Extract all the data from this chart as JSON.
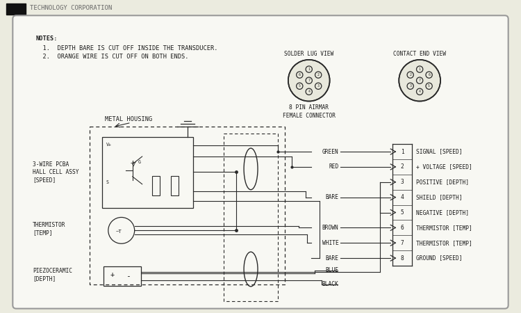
{
  "background_color": "#ebebdf",
  "panel_color": "#f5f5f0",
  "line_color": "#2a2a2a",
  "text_color": "#1a1a1a",
  "title_text": "TECHNOLOGY CORPORATION",
  "notes": [
    "NOTES:",
    "  1.  DEPTH BARE IS CUT OFF INSIDE THE TRANSDUCER.",
    "  2.  ORANGE WIRE IS CUT OFF ON BOTH ENDS."
  ],
  "connector_label1": "SOLDER LUG VIEW",
  "connector_label2": "CONTACT END VIEW",
  "connector_sub": "8 PIN AIRMAR\nFEMALE CONNECTOR",
  "metal_housing_label": "METAL HOUSING",
  "pin_labels": [
    {
      "pin": "1",
      "desc": "SIGNAL [SPEED]"
    },
    {
      "pin": "2",
      "desc": "+ VOLTAGE [SPEED]"
    },
    {
      "pin": "3",
      "desc": "POSITIVE [DEPTH]"
    },
    {
      "pin": "4",
      "desc": "SHIELD [DEPTH]"
    },
    {
      "pin": "5",
      "desc": "NEGATIVE [DEPTH]"
    },
    {
      "pin": "6",
      "desc": "THERMISTOR [TEMP]"
    },
    {
      "pin": "7",
      "desc": "THERMISTOR [TEMP]"
    },
    {
      "pin": "8",
      "desc": "GROUND [SPEED]"
    }
  ],
  "wire_names": [
    "GREEN",
    "RED",
    "",
    "BARE",
    "",
    "BROWN",
    "WHITE",
    "BARE"
  ],
  "logo_color": "#111111",
  "panel_edge_color": "#999999"
}
